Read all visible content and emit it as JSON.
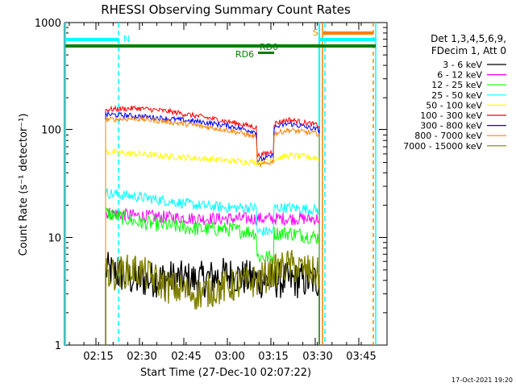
{
  "chart_data": {
    "type": "line",
    "title": "RHESSI Observing Summary Count Rates",
    "xlabel": "Start Time (27-Dec-10 02:07:22)",
    "ylabel": "Count Rate (s⁻¹ detector⁻¹)",
    "yscale": "log",
    "ylim": [
      1,
      1000
    ],
    "xlim_minutes_after_0207": [
      0,
      100
    ],
    "x_ticks": [
      "02:15",
      "02:30",
      "02:45",
      "03:00",
      "03:15",
      "03:30",
      "03:45"
    ],
    "y_ticks": [
      "1",
      "10",
      "100",
      "1000"
    ],
    "legend_header": [
      "Det 1,3,4,5,6,9,",
      "FDecim 1, Att 0"
    ],
    "footer_timestamp": "17-Oct-2021 19:20",
    "series": [
      {
        "name": "3 - 6 keV",
        "color": "#000000",
        "levels": [
          5.0,
          4.0,
          4.2,
          4.0,
          4.5,
          4.0,
          4.0,
          4.0
        ]
      },
      {
        "name": "6 - 12 keV",
        "color": "#ff00ff",
        "levels": [
          17,
          16,
          15.5,
          15,
          15,
          15,
          15,
          15
        ]
      },
      {
        "name": "12 - 25 keV",
        "color": "#00ff00",
        "levels": [
          17,
          14,
          13,
          12,
          12,
          11,
          11,
          10
        ]
      },
      {
        "name": "25 - 50 keV",
        "color": "#00ffff",
        "levels": [
          26,
          24,
          22,
          20,
          19,
          19,
          19,
          18
        ]
      },
      {
        "name": "50 - 100 keV",
        "color": "#ffff00",
        "levels": [
          63,
          60,
          57,
          55,
          52,
          50,
          58,
          55
        ]
      },
      {
        "name": "100 - 300 keV",
        "color": "#ff0000",
        "levels": [
          155,
          160,
          150,
          135,
          120,
          105,
          125,
          110
        ]
      },
      {
        "name": "300 - 800 keV",
        "color": "#0000ff",
        "levels": [
          140,
          135,
          128,
          120,
          110,
          95,
          115,
          100
        ]
      },
      {
        "name": "800 - 7000 keV",
        "color": "#ff8000",
        "levels": [
          125,
          128,
          120,
          110,
          100,
          85,
          100,
          92
        ]
      },
      {
        "name": "7000 - 15000 keV",
        "color": "#808000",
        "levels": [
          4.5,
          5.0,
          3.5,
          3.0,
          3.5,
          4.0,
          5.5,
          4.5
        ]
      }
    ],
    "annotations": [
      {
        "text": "N",
        "color": "#00ffff"
      },
      {
        "text": "S",
        "color": "#ff8000"
      },
      {
        "text": "RD0",
        "color": "#008000"
      },
      {
        "text": "RD6",
        "color": "#008000"
      }
    ]
  }
}
